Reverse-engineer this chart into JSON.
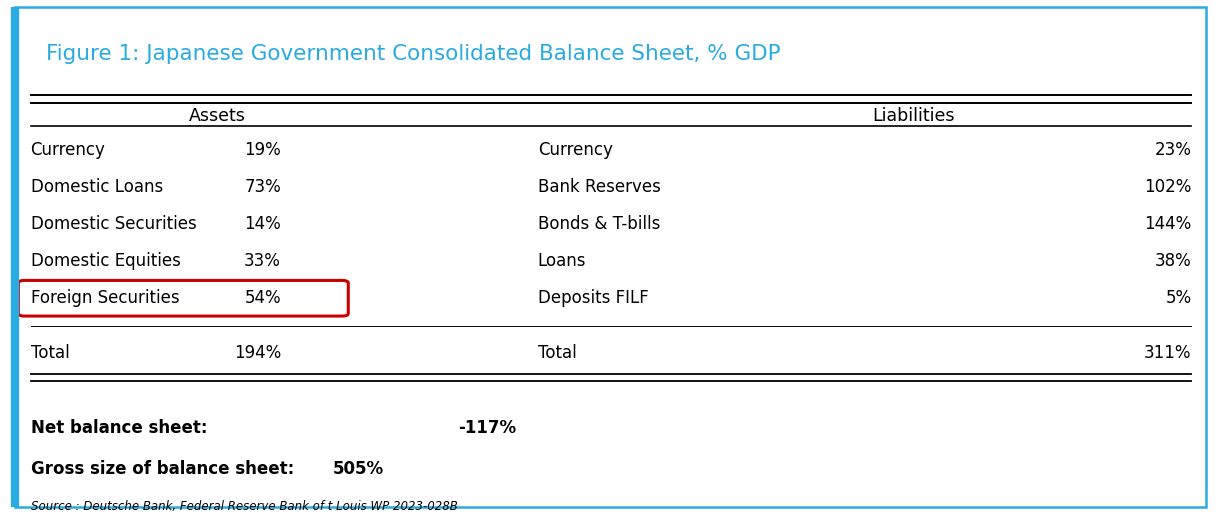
{
  "title": "Figure 1: Japanese Government Consolidated Balance Sheet, % GDP",
  "title_color": "#29ABE2",
  "border_color": "#29ABE2",
  "background_color": "#FFFFFF",
  "assets_header": "Assets",
  "liabilities_header": "Liabilities",
  "assets": [
    [
      "Currency",
      "19%"
    ],
    [
      "Domestic Loans",
      "73%"
    ],
    [
      "Domestic Securities",
      "14%"
    ],
    [
      "Domestic Equities",
      "33%"
    ],
    [
      "Foreign Securities",
      "54%"
    ]
  ],
  "liabilities": [
    [
      "Currency",
      "23%"
    ],
    [
      "Bank Reserves",
      "102%"
    ],
    [
      "Bonds & T-bills",
      "144%"
    ],
    [
      "Loans",
      "38%"
    ],
    [
      "Deposits FILF",
      "5%"
    ]
  ],
  "assets_total": [
    "Total",
    "194%"
  ],
  "liabilities_total": [
    "Total",
    "311%"
  ],
  "highlighted_row": 4,
  "highlight_color": "#CC0000",
  "net_balance_label": "Net balance sheet:",
  "net_balance_value": "-117%",
  "gross_size_label": "Gross size of balance sheet:",
  "gross_size_value": "505%",
  "source_text": "Source : Deutsche Bank, Federal Reserve Bank of t Louis WP 2023-028B",
  "figsize": [
    12.22,
    5.16
  ],
  "dpi": 100
}
